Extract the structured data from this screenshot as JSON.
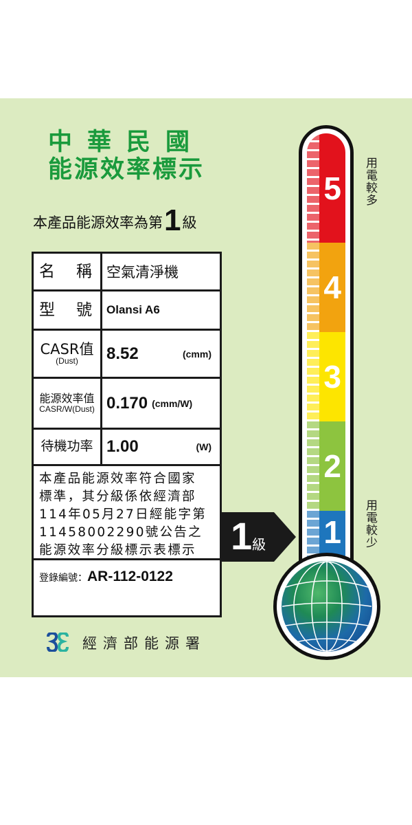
{
  "title_line1": "中華民國",
  "title_line2": "能源效率標示",
  "grade_statement": {
    "prefix": "本產品能源效率為第",
    "grade": "1",
    "suffix": "級"
  },
  "table": {
    "name_label": "名　稱",
    "name_value": "空氣清淨機",
    "model_label": "型　號",
    "model_value": "Olansi A6",
    "casr_label": "CASR值",
    "casr_sublabel": "(Dust)",
    "casr_value": "8.52",
    "casr_unit": "(cmm)",
    "eff_label": "能源效率值",
    "eff_sublabel": "CASR/W(Dust)",
    "eff_value": "0.170",
    "eff_unit": "(cmm/W)",
    "standby_label": "待機功率",
    "standby_value": "1.00",
    "standby_unit": "(W)"
  },
  "notice_lines": [
    "本產品能源效率符合國家",
    "標準，其分級係依經濟部",
    "114年05月27日經能字第",
    "11458002290號公告之",
    "能源效率分級標示表標示"
  ],
  "registration": {
    "label": "登錄編號：",
    "value": "AR-112-0122"
  },
  "pointer": {
    "grade": "1",
    "suffix": "級"
  },
  "scale": [
    {
      "level": "5",
      "color": "#e2121c"
    },
    {
      "level": "4",
      "color": "#f2a30f"
    },
    {
      "level": "3",
      "color": "#fde500"
    },
    {
      "level": "2",
      "color": "#8dc43f"
    },
    {
      "level": "1",
      "color": "#1e76bd"
    }
  ],
  "more_power": "用電較多",
  "less_power": "用電較少",
  "agency": "經濟部能源署",
  "colors": {
    "background": "#dcebc1",
    "title": "#1a9a3c"
  }
}
